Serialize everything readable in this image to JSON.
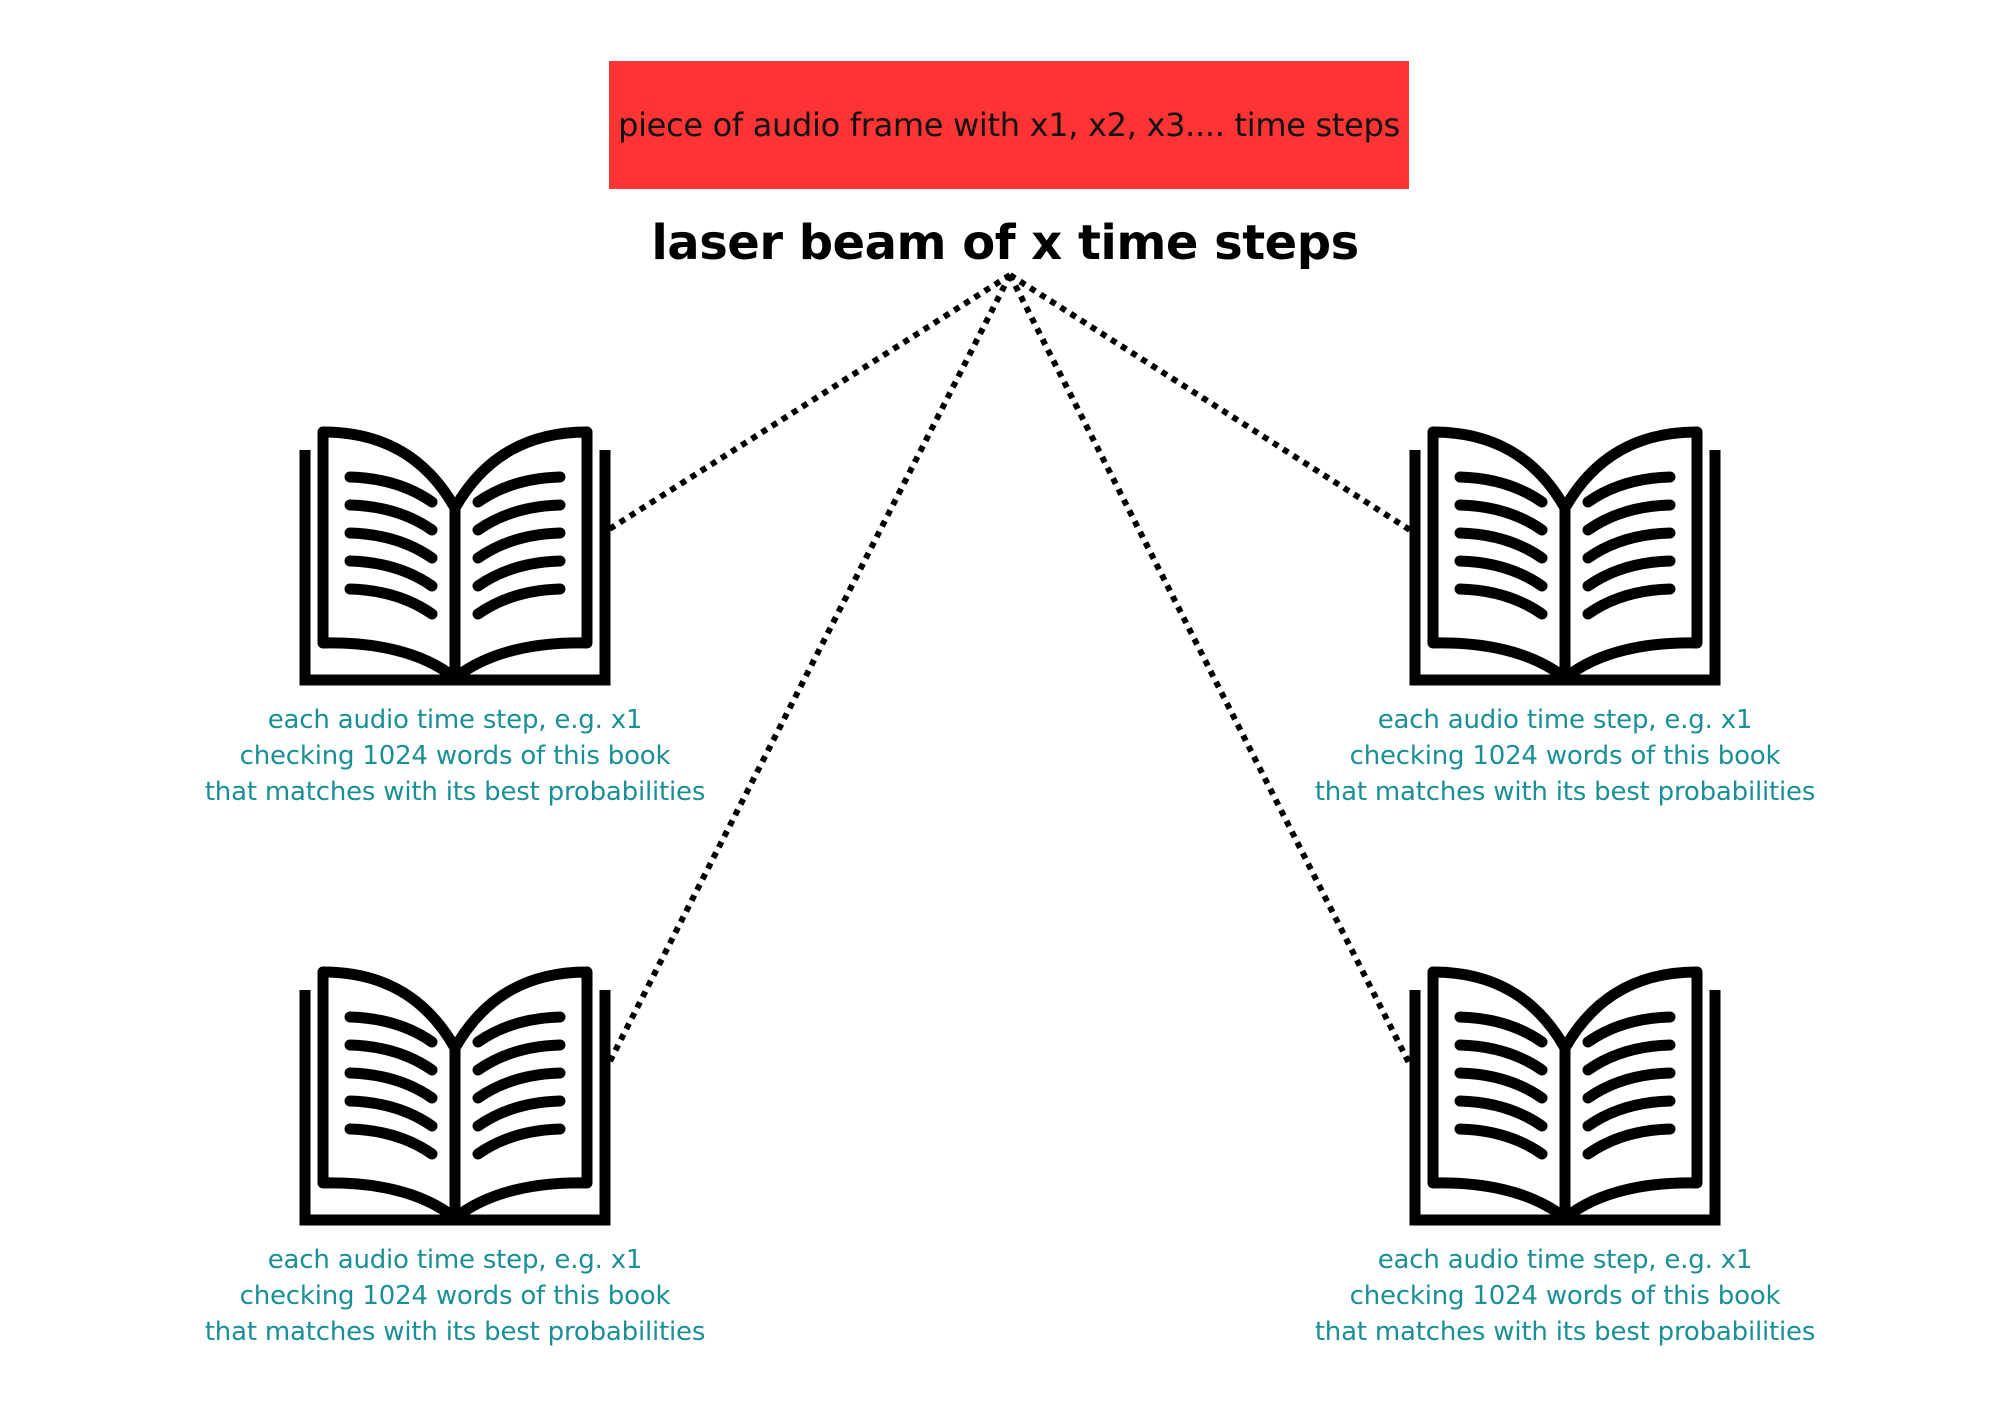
{
  "audio_frame": {
    "label": "piece of audio frame with x1, x2, x3.... time steps",
    "color": "#fe3333"
  },
  "beam": {
    "title": "laser beam of x time steps",
    "line_style": "dotted"
  },
  "books": [
    {
      "position": "top-left",
      "icon": "open-book-icon",
      "caption": {
        "line1": "each audio time step, e.g. x1",
        "line2": "checking 1024 words of this book",
        "line3": "that matches with its best probabilities"
      }
    },
    {
      "position": "top-right",
      "icon": "open-book-icon",
      "caption": {
        "line1": "each audio time step, e.g. x1",
        "line2": "checking 1024 words of this book",
        "line3": "that matches with its best probabilities"
      }
    },
    {
      "position": "bottom-left",
      "icon": "open-book-icon",
      "caption": {
        "line1": "each audio time step, e.g. x1",
        "line2": "checking 1024 words of this book",
        "line3": "that matches with its best probabilities"
      }
    },
    {
      "position": "bottom-right",
      "icon": "open-book-icon",
      "caption": {
        "line1": "each audio time step, e.g. x1",
        "line2": "checking 1024 words of this book",
        "line3": "that matches with its best probabilities"
      }
    }
  ],
  "colors": {
    "caption_text": "#1a9096",
    "book_stroke": "#000000"
  }
}
